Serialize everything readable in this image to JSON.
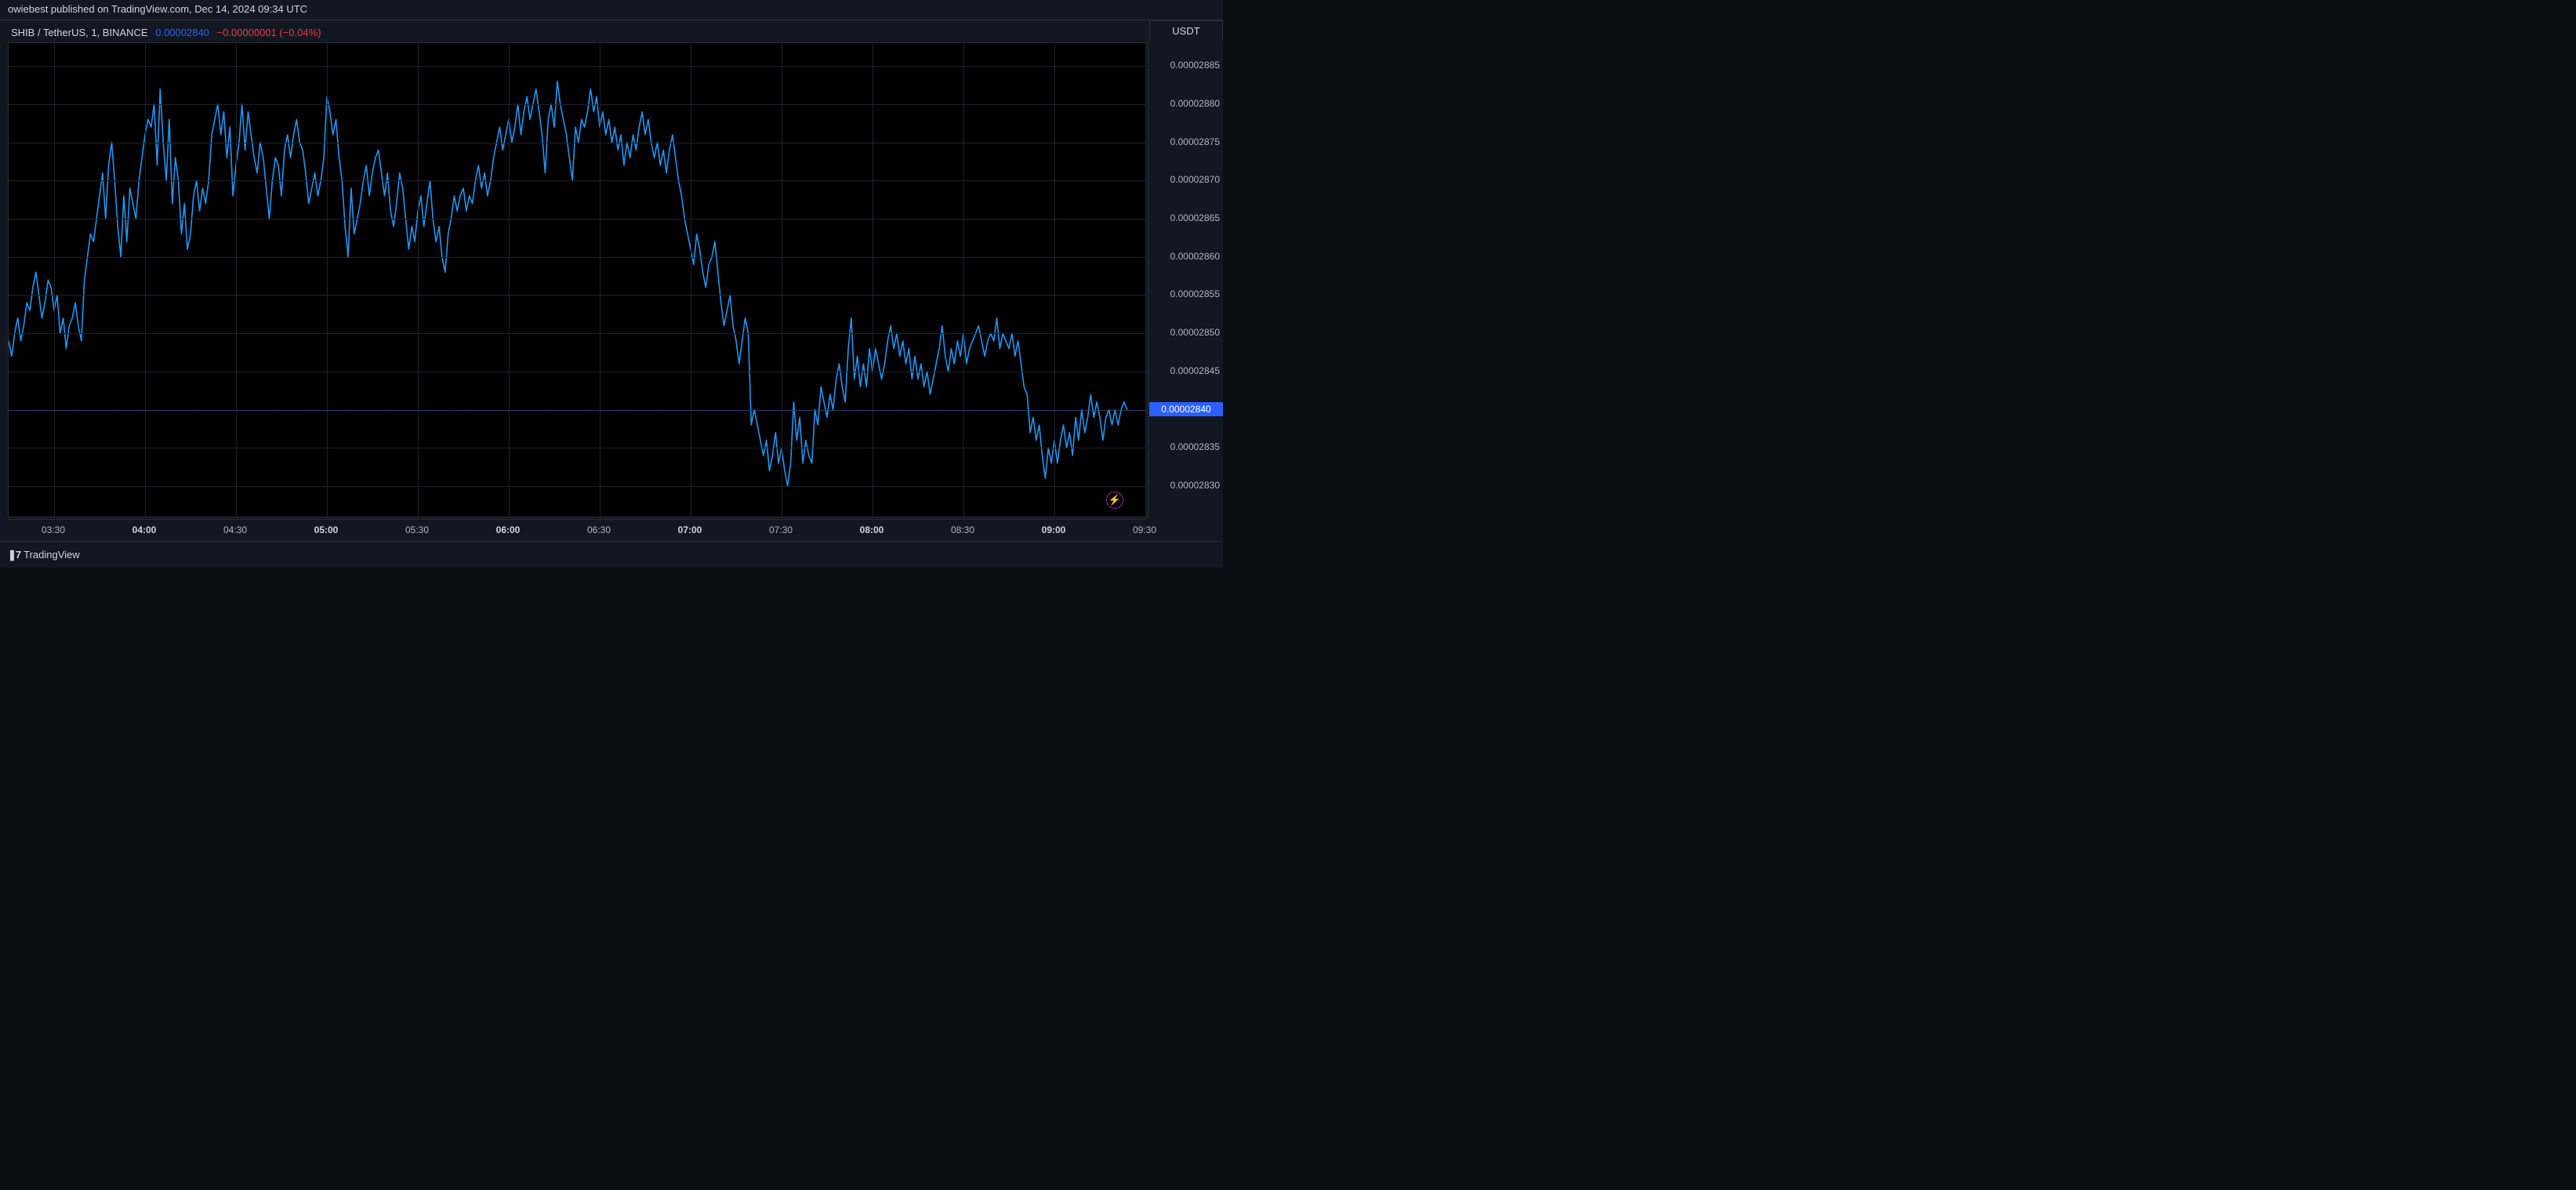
{
  "top_bar": {
    "text": "owiebest published on TradingView.com, Dec 14, 2024 09:34 UTC"
  },
  "header": {
    "symbol": "SHIB / TetherUS, 1, BINANCE",
    "value": "0.00002840",
    "change": "−0.00000001 (−0.04%)"
  },
  "y_axis": {
    "label": "USDT",
    "min": 2.826e-05,
    "max": 2.888e-05,
    "ticks": [
      {
        "v": 2.83e-05,
        "label": "0.00002830"
      },
      {
        "v": 2.835e-05,
        "label": "0.00002835"
      },
      {
        "v": 2.84e-05,
        "label": "0.00002840"
      },
      {
        "v": 2.845e-05,
        "label": "0.00002845"
      },
      {
        "v": 2.85e-05,
        "label": "0.00002850"
      },
      {
        "v": 2.855e-05,
        "label": "0.00002855"
      },
      {
        "v": 2.86e-05,
        "label": "0.00002860"
      },
      {
        "v": 2.865e-05,
        "label": "0.00002865"
      },
      {
        "v": 2.87e-05,
        "label": "0.00002870"
      },
      {
        "v": 2.875e-05,
        "label": "0.00002875"
      },
      {
        "v": 2.88e-05,
        "label": "0.00002880"
      },
      {
        "v": 2.885e-05,
        "label": "0.00002885"
      }
    ],
    "price_tag": {
      "v": 2.84e-05,
      "label": "0.00002840",
      "bg": "#2962ff"
    }
  },
  "x_axis": {
    "min": 0,
    "max": 375,
    "ticks": [
      {
        "i": 15,
        "label": "03:30",
        "bold": false
      },
      {
        "i": 45,
        "label": "04:00",
        "bold": true
      },
      {
        "i": 75,
        "label": "04:30",
        "bold": false
      },
      {
        "i": 105,
        "label": "05:00",
        "bold": true
      },
      {
        "i": 135,
        "label": "05:30",
        "bold": false
      },
      {
        "i": 165,
        "label": "06:00",
        "bold": true
      },
      {
        "i": 195,
        "label": "06:30",
        "bold": false
      },
      {
        "i": 225,
        "label": "07:00",
        "bold": true
      },
      {
        "i": 255,
        "label": "07:30",
        "bold": false
      },
      {
        "i": 285,
        "label": "08:00",
        "bold": true
      },
      {
        "i": 315,
        "label": "08:30",
        "bold": false
      },
      {
        "i": 345,
        "label": "09:00",
        "bold": true
      },
      {
        "i": 375,
        "label": "09:30",
        "bold": false
      }
    ]
  },
  "chart": {
    "type": "line",
    "line_color": "#2196f3",
    "line_width": 1.6,
    "background_color": "#000000",
    "grid_color": "#1e222d",
    "data": [
      2849,
      2847,
      2850,
      2852,
      2849,
      2851,
      2854,
      2853,
      2856,
      2858,
      2855,
      2852,
      2854,
      2857,
      2856,
      2853,
      2855,
      2850,
      2852,
      2848,
      2851,
      2852,
      2854,
      2851,
      2849,
      2857,
      2860,
      2863,
      2862,
      2865,
      2868,
      2871,
      2865,
      2872,
      2875,
      2870,
      2864,
      2860,
      2868,
      2862,
      2869,
      2867,
      2865,
      2870,
      2873,
      2876,
      2878,
      2877,
      2880,
      2872,
      2882,
      2875,
      2870,
      2878,
      2867,
      2873,
      2870,
      2863,
      2867,
      2861,
      2863,
      2868,
      2870,
      2866,
      2869,
      2867,
      2870,
      2876,
      2878,
      2880,
      2876,
      2879,
      2873,
      2877,
      2868,
      2872,
      2875,
      2880,
      2874,
      2879,
      2876,
      2873,
      2871,
      2875,
      2873,
      2869,
      2865,
      2870,
      2873,
      2872,
      2868,
      2874,
      2876,
      2873,
      2876,
      2878,
      2875,
      2874,
      2871,
      2867,
      2869,
      2871,
      2868,
      2870,
      2873,
      2881,
      2879,
      2876,
      2878,
      2873,
      2870,
      2864,
      2860,
      2869,
      2863,
      2865,
      2867,
      2870,
      2872,
      2868,
      2871,
      2873,
      2874,
      2871,
      2868,
      2871,
      2866,
      2864,
      2867,
      2871,
      2869,
      2865,
      2861,
      2864,
      2862,
      2866,
      2868,
      2864,
      2867,
      2870,
      2865,
      2862,
      2864,
      2860,
      2858,
      2863,
      2865,
      2868,
      2866,
      2868,
      2869,
      2866,
      2868,
      2867,
      2870,
      2872,
      2869,
      2871,
      2868,
      2870,
      2873,
      2875,
      2877,
      2874,
      2876,
      2878,
      2875,
      2877,
      2880,
      2876,
      2879,
      2881,
      2878,
      2880,
      2882,
      2879,
      2876,
      2871,
      2878,
      2880,
      2877,
      2883,
      2880,
      2878,
      2876,
      2873,
      2870,
      2877,
      2875,
      2878,
      2877,
      2879,
      2882,
      2879,
      2881,
      2877,
      2879,
      2876,
      2878,
      2875,
      2877,
      2874,
      2876,
      2872,
      2875,
      2873,
      2876,
      2874,
      2877,
      2879,
      2876,
      2878,
      2875,
      2873,
      2875,
      2872,
      2874,
      2871,
      2874,
      2876,
      2873,
      2870,
      2868,
      2865,
      2863,
      2861,
      2859,
      2863,
      2861,
      2858,
      2856,
      2859,
      2860,
      2862,
      2858,
      2854,
      2851,
      2853,
      2855,
      2851,
      2849,
      2846,
      2849,
      2852,
      2850,
      2838,
      2840,
      2838,
      2836,
      2834,
      2836,
      2832,
      2834,
      2837,
      2833,
      2835,
      2832,
      2830,
      2833,
      2841,
      2836,
      2839,
      2833,
      2836,
      2834,
      2833,
      2840,
      2838,
      2843,
      2841,
      2839,
      2842,
      2840,
      2844,
      2846,
      2843,
      2841,
      2848,
      2852,
      2844,
      2847,
      2843,
      2846,
      2843,
      2848,
      2845,
      2848,
      2846,
      2844,
      2846,
      2849,
      2851,
      2848,
      2850,
      2847,
      2849,
      2846,
      2848,
      2844,
      2847,
      2844,
      2846,
      2843,
      2845,
      2842,
      2844,
      2846,
      2848,
      2851,
      2847,
      2845,
      2848,
      2846,
      2849,
      2847,
      2850,
      2846,
      2848,
      2849,
      2850,
      2851,
      2849,
      2847,
      2849,
      2850,
      2849,
      2852,
      2848,
      2850,
      2849,
      2848,
      2850,
      2847,
      2849,
      2846,
      2843,
      2842,
      2837,
      2839,
      2836,
      2838,
      2834,
      2831,
      2835,
      2833,
      2836,
      2833,
      2836,
      2838,
      2835,
      2837,
      2834,
      2839,
      2836,
      2840,
      2837,
      2839,
      2842,
      2839,
      2841,
      2839,
      2836,
      2839,
      2840,
      2838,
      2840,
      2838,
      2840,
      2841,
      2840
    ]
  },
  "footer": {
    "logo_mark": "❚7",
    "logo_text": "TradingView"
  },
  "snap_icon": {
    "glyph": "⚡"
  }
}
